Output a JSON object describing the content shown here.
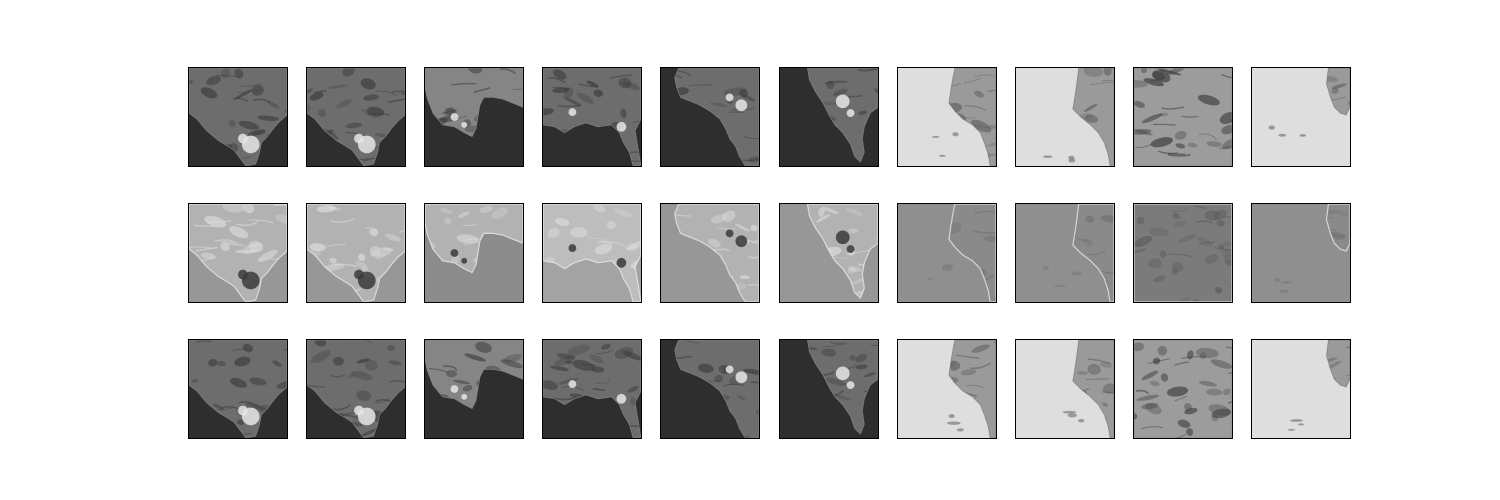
{
  "figure": {
    "background": "#ffffff",
    "frame_color": "#000000",
    "rows": [
      {
        "name": "row-1",
        "style": "dark-sea",
        "tiles": [
          {
            "view": "view-a",
            "variant": 0
          },
          {
            "view": "view-a",
            "variant": 1
          },
          {
            "view": "view-b",
            "variant": 0
          },
          {
            "view": "view-c",
            "variant": 0
          },
          {
            "view": "view-d",
            "variant": 0
          },
          {
            "view": "view-e",
            "variant": 0
          },
          {
            "view": "view-f",
            "variant": 0
          },
          {
            "view": "view-g",
            "variant": 0
          },
          {
            "view": "view-h",
            "variant": 0
          },
          {
            "view": "view-i",
            "variant": 0
          }
        ]
      },
      {
        "name": "row-2",
        "style": "mid-gray-emboss",
        "tiles": [
          {
            "view": "view-a",
            "variant": 0
          },
          {
            "view": "view-a",
            "variant": 1
          },
          {
            "view": "view-b",
            "variant": 0
          },
          {
            "view": "view-c",
            "variant": 0
          },
          {
            "view": "view-d",
            "variant": 0
          },
          {
            "view": "view-e",
            "variant": 0
          },
          {
            "view": "view-f",
            "variant": 0
          },
          {
            "view": "view-g",
            "variant": 0
          },
          {
            "view": "view-h",
            "variant": 0
          },
          {
            "view": "view-i",
            "variant": 0
          }
        ]
      },
      {
        "name": "row-3",
        "style": "dark-sea",
        "tiles": [
          {
            "view": "view-a",
            "variant": 0
          },
          {
            "view": "view-a",
            "variant": 1
          },
          {
            "view": "view-b",
            "variant": 0
          },
          {
            "view": "view-c",
            "variant": 0
          },
          {
            "view": "view-d",
            "variant": 0
          },
          {
            "view": "view-e",
            "variant": 0
          },
          {
            "view": "view-f",
            "variant": 0
          },
          {
            "view": "view-g",
            "variant": 0
          },
          {
            "view": "view-h",
            "variant": 0
          },
          {
            "view": "view-i",
            "variant": 0
          }
        ]
      }
    ]
  }
}
